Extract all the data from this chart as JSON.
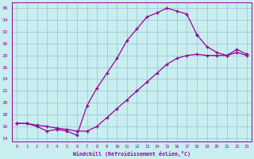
{
  "xlabel": "Windchill (Refroidissement éolien,°C)",
  "bg_color": "#c8eef0",
  "grid_color": "#a0c8d8",
  "line_color": "#990099",
  "xlim": [
    -0.5,
    23.5
  ],
  "ylim": [
    13.5,
    37
  ],
  "xticks": [
    0,
    1,
    2,
    3,
    4,
    5,
    6,
    7,
    8,
    9,
    10,
    11,
    12,
    13,
    14,
    15,
    16,
    17,
    18,
    19,
    20,
    21,
    22,
    23
  ],
  "yticks": [
    14,
    16,
    18,
    20,
    22,
    24,
    26,
    28,
    30,
    32,
    34,
    36
  ],
  "line1_x": [
    0,
    1,
    2,
    3,
    4,
    5,
    6,
    7,
    8,
    9,
    10,
    11,
    12,
    13,
    14,
    15,
    16,
    17,
    18
  ],
  "line1_y": [
    16.5,
    16.5,
    16.0,
    15.2,
    15.5,
    15.2,
    14.5,
    19.5,
    22.5,
    25.0,
    27.5,
    30.5,
    32.5,
    34.5,
    35.2,
    36.0,
    35.5,
    35.0,
    31.5
  ],
  "line2_x": [
    0,
    1,
    2,
    3,
    4,
    5,
    6,
    7,
    8,
    9,
    10,
    11,
    12,
    13,
    14,
    15,
    16,
    17,
    18,
    19,
    20,
    21,
    22,
    23
  ],
  "line2_y": [
    16.5,
    16.5,
    16.2,
    16.0,
    15.7,
    15.5,
    15.2,
    15.2,
    16.0,
    17.5,
    19.0,
    20.5,
    22.0,
    23.5,
    25.0,
    26.5,
    27.5,
    28.0,
    28.2,
    28.0,
    28.0,
    28.0,
    28.5,
    28.0
  ],
  "line3_x": [
    18,
    19,
    20,
    21,
    22,
    23
  ],
  "line3_y": [
    31.5,
    29.5,
    28.5,
    28.0,
    29.0,
    28.2
  ]
}
